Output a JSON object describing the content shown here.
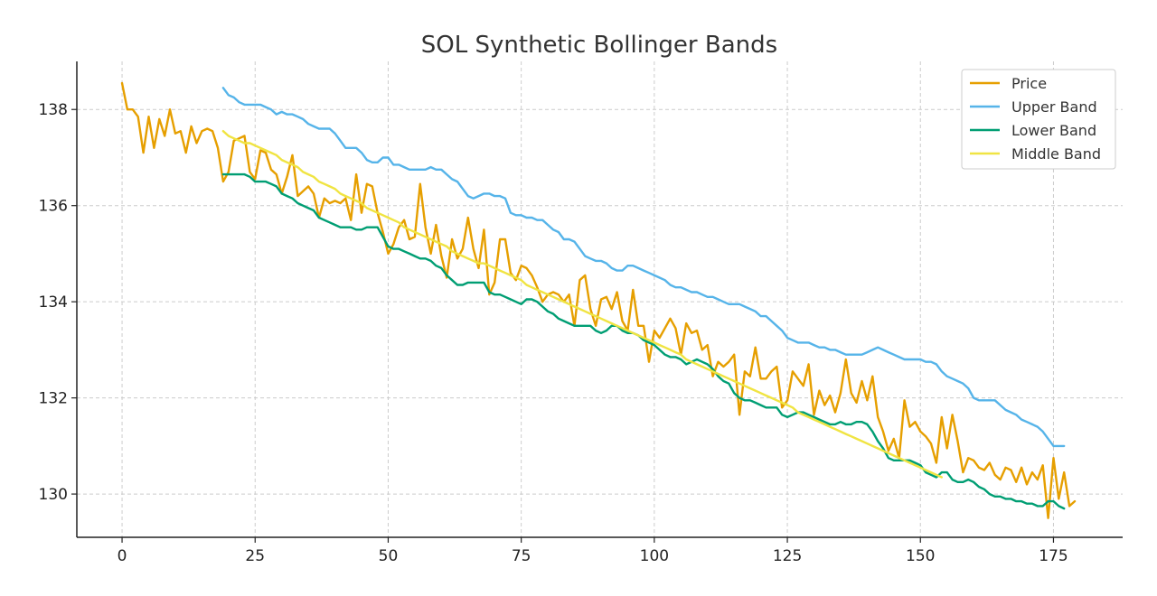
{
  "chart_data": {
    "type": "line",
    "title": "SOL Synthetic Bollinger Bands",
    "xlabel": "",
    "ylabel": "",
    "xlim": [
      -8.5,
      188
    ],
    "ylim": [
      129.1,
      139.0
    ],
    "x_ticks": [
      0,
      25,
      50,
      75,
      100,
      125,
      150,
      175
    ],
    "y_ticks": [
      130,
      132,
      134,
      136,
      138
    ],
    "grid": true,
    "legend_position": "top-right",
    "series": [
      {
        "name": "Price",
        "color": "#E69F00",
        "x_start": 0,
        "values": [
          138.55,
          138.0,
          138.0,
          137.85,
          137.1,
          137.85,
          137.2,
          137.8,
          137.45,
          138.0,
          137.5,
          137.55,
          137.1,
          137.65,
          137.3,
          137.55,
          137.6,
          137.55,
          137.2,
          136.5,
          136.7,
          137.35,
          137.4,
          137.45,
          136.7,
          136.55,
          137.15,
          137.1,
          136.75,
          136.65,
          136.25,
          136.6,
          137.05,
          136.2,
          136.3,
          136.4,
          136.25,
          135.75,
          136.15,
          136.05,
          136.1,
          136.05,
          136.15,
          135.7,
          136.65,
          135.85,
          136.45,
          136.4,
          135.85,
          135.45,
          135.0,
          135.2,
          135.55,
          135.7,
          135.3,
          135.35,
          136.45,
          135.55,
          135.0,
          135.6,
          134.95,
          134.5,
          135.3,
          134.9,
          135.1,
          135.75,
          135.1,
          134.7,
          135.5,
          134.15,
          134.4,
          135.3,
          135.3,
          134.6,
          134.45,
          134.75,
          134.7,
          134.55,
          134.3,
          134.0,
          134.15,
          134.2,
          134.15,
          134.0,
          134.15,
          133.5,
          134.45,
          134.55,
          133.85,
          133.5,
          134.05,
          134.1,
          133.85,
          134.2,
          133.6,
          133.4,
          134.25,
          133.5,
          133.5,
          132.75,
          133.4,
          133.25,
          133.45,
          133.65,
          133.45,
          132.9,
          133.55,
          133.35,
          133.4,
          133.0,
          133.1,
          132.45,
          132.75,
          132.65,
          132.75,
          132.9,
          131.65,
          132.55,
          132.45,
          133.05,
          132.4,
          132.4,
          132.55,
          132.65,
          131.8,
          131.95,
          132.55,
          132.4,
          132.25,
          132.7,
          131.65,
          132.15,
          131.85,
          132.05,
          131.7,
          132.1,
          132.8,
          132.1,
          131.9,
          132.35,
          131.95,
          132.45,
          131.6,
          131.3,
          130.9,
          131.15,
          130.75,
          131.95,
          131.4,
          131.5,
          131.3,
          131.2,
          131.05,
          130.65,
          131.6,
          130.95,
          131.65,
          131.1,
          130.45,
          130.75,
          130.7,
          130.55,
          130.5,
          130.65,
          130.4,
          130.3,
          130.55,
          130.5,
          130.25,
          130.55,
          130.2,
          130.45,
          130.3,
          130.6,
          129.5,
          130.75,
          129.9,
          130.45,
          129.75,
          129.85
        ]
      },
      {
        "name": "Upper Band",
        "color": "#56B4E9",
        "x_start": 19,
        "values": [
          138.45,
          138.3,
          138.25,
          138.15,
          138.1,
          138.1,
          138.1,
          138.1,
          138.05,
          138.0,
          137.9,
          137.95,
          137.9,
          137.9,
          137.85,
          137.8,
          137.7,
          137.65,
          137.6,
          137.6,
          137.6,
          137.5,
          137.35,
          137.2,
          137.2,
          137.2,
          137.1,
          136.95,
          136.9,
          136.9,
          137.0,
          137.0,
          136.85,
          136.85,
          136.8,
          136.75,
          136.75,
          136.75,
          136.75,
          136.8,
          136.75,
          136.75,
          136.65,
          136.55,
          136.5,
          136.35,
          136.2,
          136.15,
          136.2,
          136.25,
          136.25,
          136.2,
          136.2,
          136.15,
          135.85,
          135.8,
          135.8,
          135.75,
          135.75,
          135.7,
          135.7,
          135.6,
          135.5,
          135.45,
          135.3,
          135.3,
          135.25,
          135.1,
          134.95,
          134.9,
          134.85,
          134.85,
          134.8,
          134.7,
          134.65,
          134.65,
          134.75,
          134.75,
          134.7,
          134.65,
          134.6,
          134.55,
          134.5,
          134.45,
          134.35,
          134.3,
          134.3,
          134.25,
          134.2,
          134.2,
          134.15,
          134.1,
          134.1,
          134.05,
          134.0,
          133.95,
          133.95,
          133.95,
          133.9,
          133.85,
          133.8,
          133.7,
          133.7,
          133.6,
          133.5,
          133.4,
          133.25,
          133.2,
          133.15,
          133.15,
          133.15,
          133.1,
          133.05,
          133.05,
          133.0,
          133.0,
          132.95,
          132.9,
          132.9,
          132.9,
          132.9,
          132.95,
          133.0,
          133.05,
          133.0,
          132.95,
          132.9,
          132.85,
          132.8,
          132.8,
          132.8,
          132.8,
          132.75,
          132.75,
          132.7,
          132.55,
          132.45,
          132.4,
          132.35,
          132.3,
          132.2,
          132.0,
          131.95,
          131.95,
          131.95,
          131.95,
          131.85,
          131.75,
          131.7,
          131.65,
          131.55,
          131.5,
          131.45,
          131.4,
          131.3,
          131.15,
          131.0,
          131.0,
          131.0
        ]
      },
      {
        "name": "Lower Band",
        "color": "#009E73",
        "x_start": 19,
        "values": [
          136.65,
          136.65,
          136.65,
          136.65,
          136.65,
          136.6,
          136.5,
          136.5,
          136.5,
          136.45,
          136.4,
          136.25,
          136.2,
          136.15,
          136.05,
          136.0,
          135.95,
          135.9,
          135.75,
          135.7,
          135.65,
          135.6,
          135.55,
          135.55,
          135.55,
          135.5,
          135.5,
          135.55,
          135.55,
          135.55,
          135.35,
          135.15,
          135.1,
          135.1,
          135.05,
          135.0,
          134.95,
          134.9,
          134.9,
          134.85,
          134.75,
          134.7,
          134.55,
          134.45,
          134.35,
          134.35,
          134.4,
          134.4,
          134.4,
          134.4,
          134.2,
          134.15,
          134.15,
          134.1,
          134.05,
          134.0,
          133.95,
          134.05,
          134.05,
          134.0,
          133.9,
          133.8,
          133.75,
          133.65,
          133.6,
          133.55,
          133.5,
          133.5,
          133.5,
          133.5,
          133.4,
          133.35,
          133.4,
          133.5,
          133.5,
          133.4,
          133.35,
          133.35,
          133.3,
          133.2,
          133.15,
          133.1,
          133.0,
          132.9,
          132.85,
          132.85,
          132.8,
          132.7,
          132.75,
          132.8,
          132.75,
          132.7,
          132.6,
          132.45,
          132.35,
          132.3,
          132.1,
          132.0,
          131.95,
          131.95,
          131.9,
          131.85,
          131.8,
          131.8,
          131.8,
          131.65,
          131.6,
          131.65,
          131.7,
          131.7,
          131.65,
          131.6,
          131.55,
          131.5,
          131.45,
          131.45,
          131.5,
          131.45,
          131.45,
          131.5,
          131.5,
          131.45,
          131.3,
          131.1,
          130.95,
          130.75,
          130.7,
          130.7,
          130.7,
          130.7,
          130.65,
          130.6,
          130.45,
          130.4,
          130.35,
          130.45,
          130.45,
          130.3,
          130.25,
          130.25,
          130.3,
          130.25,
          130.15,
          130.1,
          130.0,
          129.95,
          129.95,
          129.9,
          129.9,
          129.85,
          129.85,
          129.8,
          129.8,
          129.75,
          129.75,
          129.85,
          129.85,
          129.75,
          129.7
        ]
      },
      {
        "name": "Middle Band",
        "color": "#F0E442",
        "x_start": 19,
        "values": [
          137.55,
          137.45,
          137.4,
          137.35,
          137.3,
          137.3,
          137.25,
          137.2,
          137.15,
          137.1,
          137.05,
          136.95,
          136.9,
          136.85,
          136.8,
          136.7,
          136.65,
          136.6,
          136.5,
          136.45,
          136.4,
          136.35,
          136.25,
          136.2,
          136.15,
          136.1,
          136.05,
          135.95,
          135.9,
          135.85,
          135.8,
          135.75,
          135.7,
          135.65,
          135.55,
          135.5,
          135.45,
          135.4,
          135.35,
          135.3,
          135.25,
          135.2,
          135.15,
          135.05,
          135.0,
          134.95,
          134.9,
          134.85,
          134.8,
          134.8,
          134.75,
          134.7,
          134.65,
          134.6,
          134.55,
          134.5,
          134.45,
          134.35,
          134.3,
          134.25,
          134.2,
          134.15,
          134.1,
          134.05,
          134.0,
          133.95,
          133.9,
          133.85,
          133.8,
          133.75,
          133.7,
          133.65,
          133.6,
          133.55,
          133.5,
          133.45,
          133.4,
          133.35,
          133.3,
          133.25,
          133.2,
          133.15,
          133.1,
          133.05,
          133.0,
          132.95,
          132.9,
          132.8,
          132.75,
          132.7,
          132.65,
          132.6,
          132.55,
          132.5,
          132.45,
          132.4,
          132.35,
          132.3,
          132.25,
          132.2,
          132.15,
          132.1,
          132.05,
          132.0,
          131.95,
          131.9,
          131.85,
          131.8,
          131.7,
          131.65,
          131.6,
          131.55,
          131.5,
          131.45,
          131.4,
          131.35,
          131.3,
          131.25,
          131.2,
          131.15,
          131.1,
          131.05,
          131.0,
          130.95,
          130.9,
          130.85,
          130.8,
          130.75,
          130.7,
          130.65,
          130.6,
          130.55,
          130.5,
          130.45,
          130.4,
          130.35
        ]
      }
    ]
  }
}
